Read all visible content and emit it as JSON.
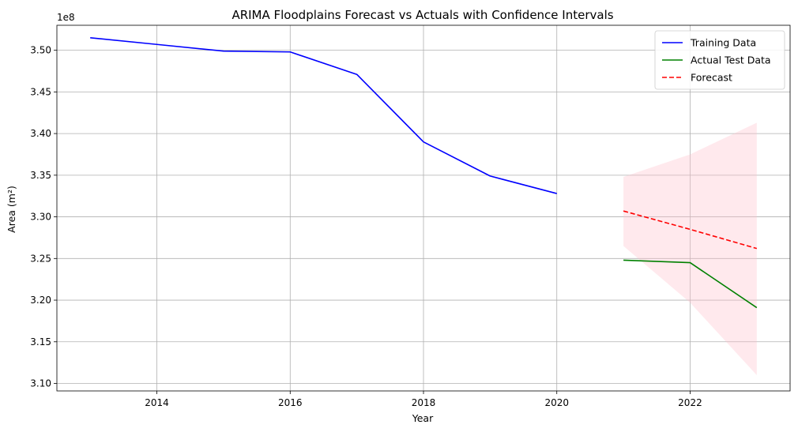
{
  "chart_data": {
    "type": "line",
    "title": "ARIMA Floodplains Forecast vs Actuals with Confidence Intervals",
    "xlabel": "Year",
    "ylabel": "Area (m²)",
    "y_offset_label": "1e8",
    "y_scale": 100000000,
    "xlim": [
      2012.5,
      2023.5
    ],
    "ylim": [
      3.091,
      3.53
    ],
    "x_ticks": [
      2014,
      2016,
      2018,
      2020,
      2022
    ],
    "x_tick_labels": [
      "2014",
      "2016",
      "2018",
      "2020",
      "2022"
    ],
    "y_ticks": [
      3.1,
      3.15,
      3.2,
      3.25,
      3.3,
      3.35,
      3.4,
      3.45,
      3.5
    ],
    "y_tick_labels": [
      "3.10",
      "3.15",
      "3.20",
      "3.25",
      "3.30",
      "3.35",
      "3.40",
      "3.45",
      "3.50"
    ],
    "grid": true,
    "legend_position": "top-right",
    "series": [
      {
        "name": "Training Data",
        "color": "#0000ff",
        "style": "solid",
        "x": [
          2013,
          2014,
          2015,
          2016,
          2017,
          2018,
          2019,
          2020
        ],
        "y": [
          3.515,
          3.507,
          3.499,
          3.498,
          3.471,
          3.39,
          3.349,
          3.328
        ]
      },
      {
        "name": "Actual Test Data",
        "color": "#008000",
        "style": "solid",
        "x": [
          2021,
          2022,
          2023
        ],
        "y": [
          3.248,
          3.245,
          3.191
        ]
      },
      {
        "name": "Forecast",
        "color": "#ff0000",
        "style": "dashed",
        "x": [
          2021,
          2022,
          2023
        ],
        "y": [
          3.307,
          3.285,
          3.262
        ]
      }
    ],
    "confidence_interval": {
      "color": "#ffc0cb",
      "opacity": 0.35,
      "x": [
        2021,
        2022,
        2023
      ],
      "lower": [
        3.265,
        3.197,
        3.11
      ],
      "upper": [
        3.348,
        3.375,
        3.413
      ]
    }
  }
}
